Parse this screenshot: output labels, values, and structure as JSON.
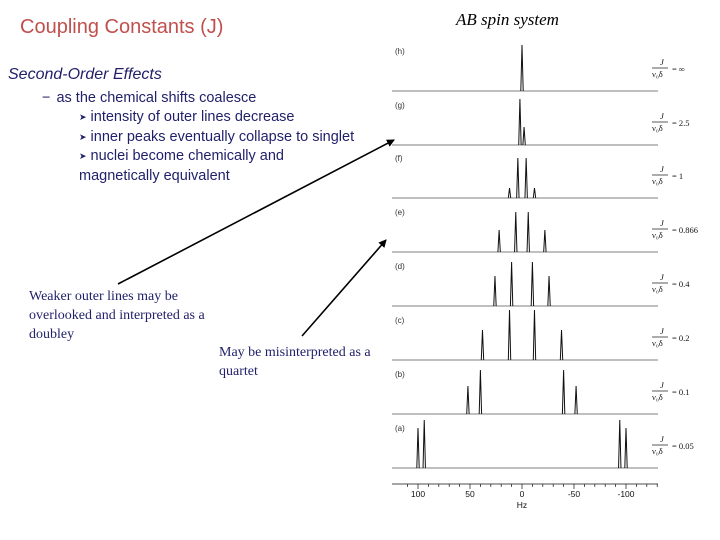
{
  "slide": {
    "title": "Coupling Constants (J)",
    "subheading": "Second-Order Effects",
    "point": "as the chemical shifts coalesce",
    "sub_bullets": [
      "intensity of outer lines decrease",
      "inner peaks eventually collapse to singlet",
      "nuclei become chemically and magnetically equivalent"
    ],
    "note_left": "Weaker outer lines may be overlooked and interpreted as a doubley",
    "note_right": "May be misinterpreted as a quartet"
  },
  "spectrum": {
    "title": "AB spin system",
    "ratio_symbol": "J",
    "ratio_denominator": "ν₀δ",
    "traces": [
      {
        "label": "(h)",
        "ratio": "= ∞"
      },
      {
        "label": "(g)",
        "ratio": "= 2.5"
      },
      {
        "label": "(f)",
        "ratio": "= 1"
      },
      {
        "label": "(e)",
        "ratio": "= 0.866"
      },
      {
        "label": "(d)",
        "ratio": "= 0.4"
      },
      {
        "label": "(c)",
        "ratio": "= 0.2"
      },
      {
        "label": "(b)",
        "ratio": "= 0.1"
      },
      {
        "label": "(a)",
        "ratio": "= 0.05"
      }
    ],
    "axis": {
      "ticks": [
        "100",
        "50",
        "0",
        "-50",
        "-100"
      ],
      "unit": "Hz"
    }
  }
}
